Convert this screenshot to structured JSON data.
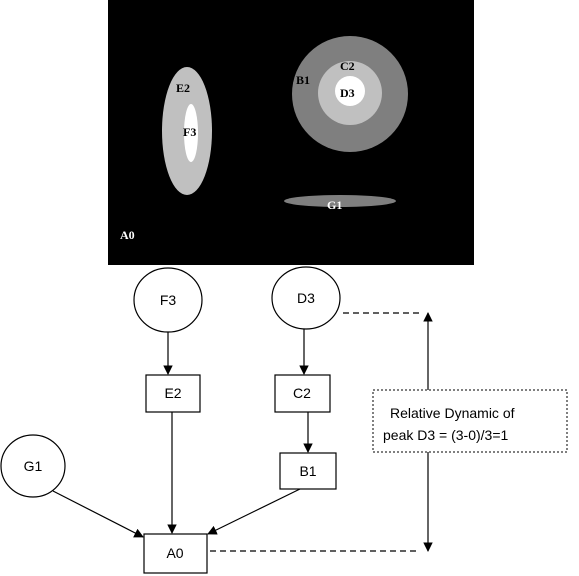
{
  "image": {
    "background": "#000000",
    "labels": {
      "a0": "A0",
      "b1": "B1",
      "c2": "C2",
      "d3": "D3",
      "e2": "E2",
      "f3": "F3",
      "g1": "G1"
    },
    "colors": {
      "level1": "#7f7f7f",
      "level2": "#c0c0c0",
      "level3": "#ffffff"
    }
  },
  "tree": {
    "circles": {
      "f3": "F3",
      "d3": "D3",
      "g1": "G1"
    },
    "boxes": {
      "e2": "E2",
      "c2": "C2",
      "b1": "B1",
      "a0": "A0"
    }
  },
  "annotation": {
    "line1": "Relative Dynamic of",
    "line2": "peak D3 = (3-0)/3=1"
  }
}
